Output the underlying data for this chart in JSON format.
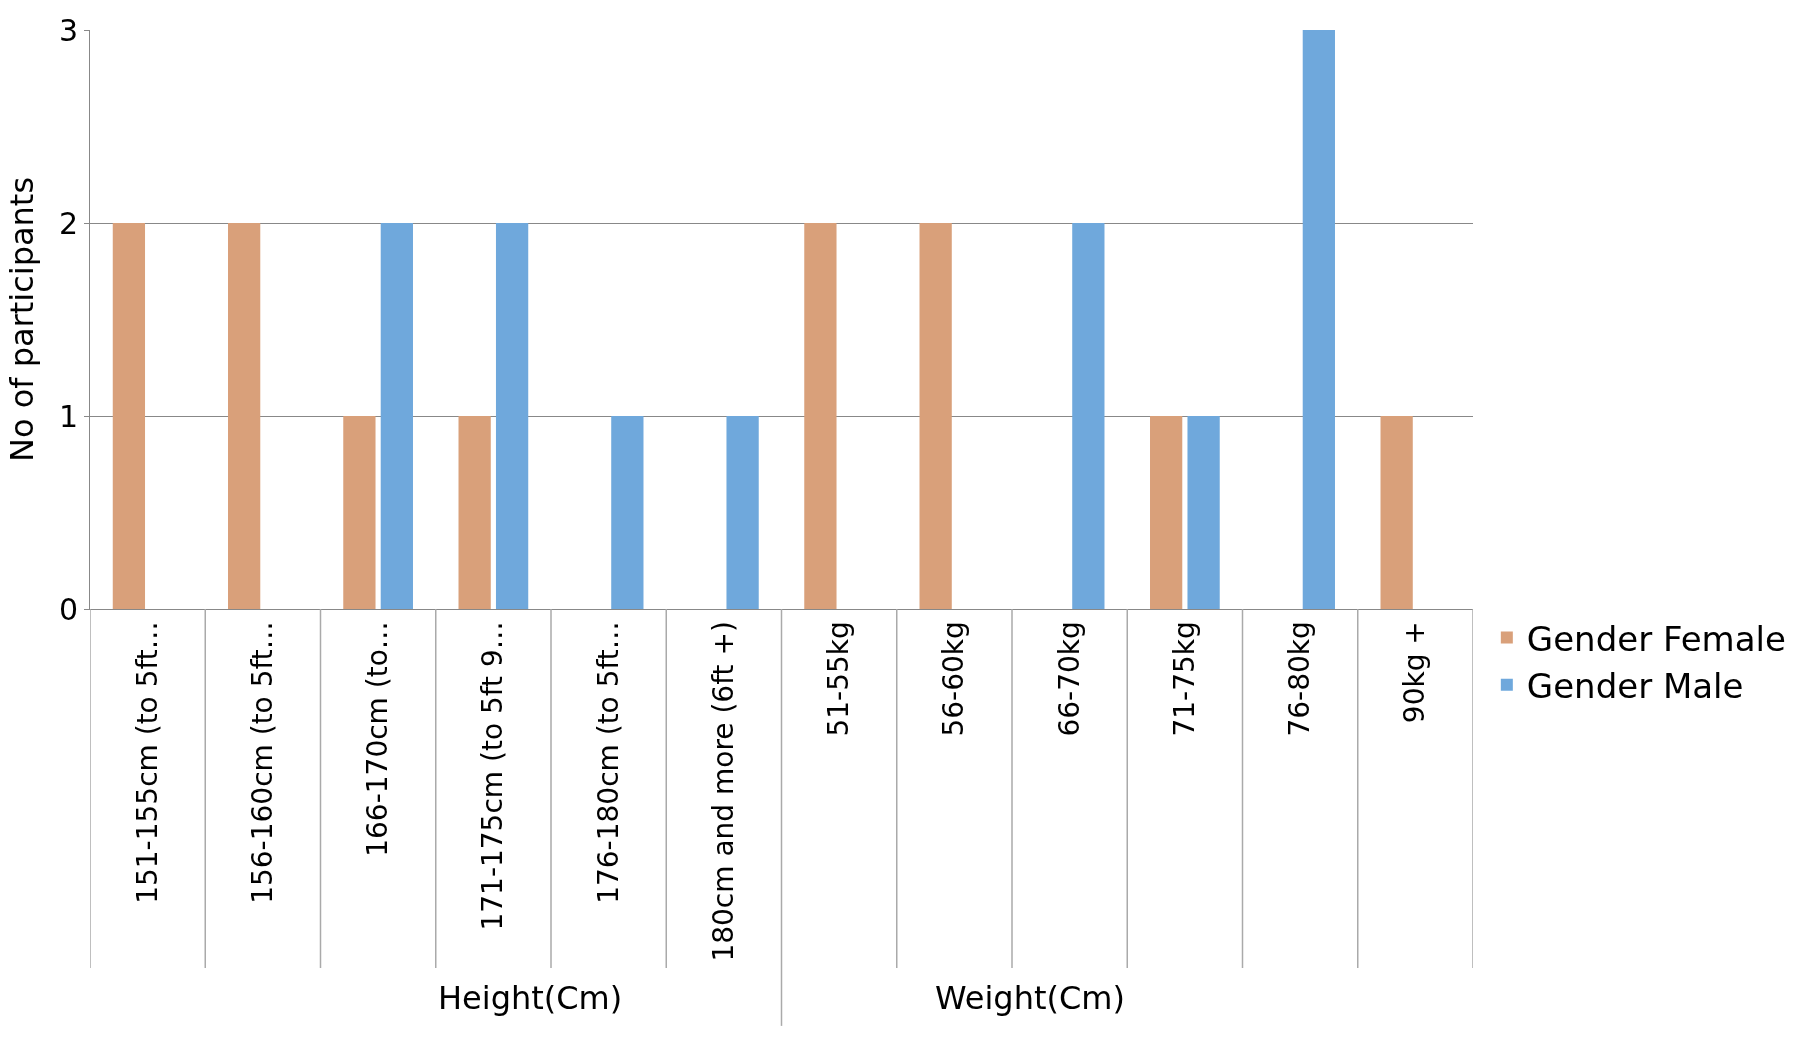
{
  "chart_data": {
    "type": "bar",
    "ylabel": "No of participants",
    "categories": [
      "151-155cm (to 5ft…",
      "156-160cm (to 5ft…",
      "166-170cm (to…",
      "171-175cm (to 5ft 9…",
      "176-180cm (to 5ft…",
      "180cm and more (6ft +)",
      "51-55kg",
      "56-60kg",
      "66-70kg",
      "71-75kg",
      "76-80kg",
      "90kg +"
    ],
    "series": [
      {
        "name": "Gender Female",
        "color": "#d9a07a",
        "values": [
          2,
          2,
          1,
          1,
          0,
          0,
          2,
          2,
          0,
          1,
          0,
          1
        ]
      },
      {
        "name": "Gender Male",
        "color": "#6fa8dc",
        "values": [
          0,
          0,
          2,
          2,
          1,
          1,
          0,
          0,
          2,
          1,
          3,
          0
        ]
      }
    ],
    "annotations": [
      "Height(Cm)",
      "Weight(Cm)"
    ],
    "ylim": [
      0,
      3
    ],
    "yticks": [
      0,
      1,
      2,
      3
    ],
    "grid": "y",
    "legend": "right"
  }
}
